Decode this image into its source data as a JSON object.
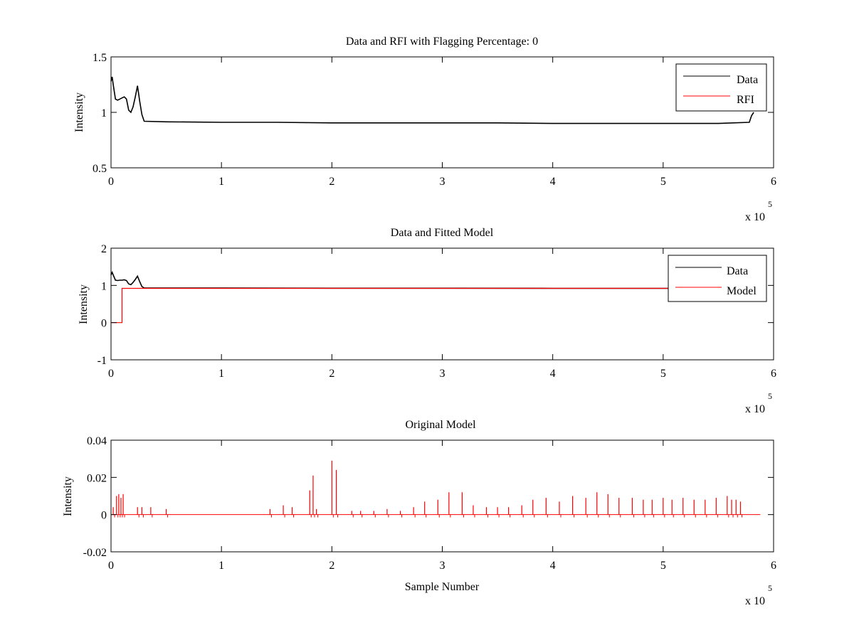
{
  "chart_data": [
    {
      "type": "line",
      "title": "Data and RFI with Flagging Percentage: 0",
      "xlabel": "",
      "ylabel": "Intensity",
      "xlim": [
        0,
        6
      ],
      "ylim": [
        0.5,
        1.5
      ],
      "x_multiplier": "x 10",
      "x_multiplier_exp": "5",
      "xticks": [
        "0",
        "1",
        "2",
        "3",
        "4",
        "5",
        "6"
      ],
      "yticks": [
        "0.5",
        "1",
        "1.5"
      ],
      "ytick_values": [
        0.5,
        1,
        1.5
      ],
      "legend_position": "top-right",
      "series": [
        {
          "name": "Data",
          "color": "#000000",
          "x": [
            0,
            0.01,
            0.02,
            0.04,
            0.06,
            0.08,
            0.1,
            0.12,
            0.14,
            0.16,
            0.18,
            0.2,
            0.22,
            0.24,
            0.26,
            0.28,
            0.3,
            0.5,
            1.0,
            1.5,
            2.0,
            2.5,
            3.0,
            3.5,
            4.0,
            4.5,
            5.0,
            5.5,
            5.78,
            5.8,
            5.82
          ],
          "y": [
            1.28,
            1.32,
            1.25,
            1.12,
            1.11,
            1.12,
            1.13,
            1.14,
            1.12,
            1.02,
            1.0,
            1.05,
            1.14,
            1.24,
            1.1,
            0.98,
            0.92,
            0.915,
            0.91,
            0.91,
            0.905,
            0.905,
            0.905,
            0.905,
            0.9,
            0.9,
            0.9,
            0.9,
            0.91,
            0.97,
            1.0
          ]
        },
        {
          "name": "RFI",
          "color": "#ff0000",
          "x": [],
          "y": []
        }
      ]
    },
    {
      "type": "line",
      "title": "Data and Fitted Model",
      "xlabel": "",
      "ylabel": "Intensity",
      "xlim": [
        0,
        6
      ],
      "ylim": [
        -1,
        2
      ],
      "x_multiplier": "x 10",
      "x_multiplier_exp": "5",
      "xticks": [
        "0",
        "1",
        "2",
        "3",
        "4",
        "5",
        "6"
      ],
      "yticks": [
        "-1",
        "0",
        "1",
        "2"
      ],
      "ytick_values": [
        -1,
        0,
        1,
        2
      ],
      "legend_position": "top-right",
      "series": [
        {
          "name": "Data",
          "color": "#000000",
          "x": [
            0,
            0.01,
            0.02,
            0.04,
            0.06,
            0.08,
            0.1,
            0.12,
            0.14,
            0.16,
            0.18,
            0.2,
            0.22,
            0.24,
            0.26,
            0.28,
            0.3,
            0.5,
            1.0,
            2.0,
            3.0,
            4.0,
            5.0,
            5.8,
            5.82
          ],
          "y": [
            1.28,
            1.35,
            1.28,
            1.14,
            1.13,
            1.14,
            1.14,
            1.15,
            1.13,
            1.04,
            1.02,
            1.08,
            1.16,
            1.25,
            1.1,
            0.97,
            0.93,
            0.93,
            0.93,
            0.925,
            0.925,
            0.92,
            0.92,
            0.92,
            0.92
          ]
        },
        {
          "name": "Model",
          "color": "#ff0000",
          "x": [
            0,
            0.1,
            0.1,
            0.5,
            1.0,
            2.0,
            3.0,
            4.0,
            5.0,
            5.82
          ],
          "y": [
            0.0,
            0.0,
            0.92,
            0.92,
            0.92,
            0.92,
            0.92,
            0.92,
            0.92,
            0.92
          ]
        }
      ]
    },
    {
      "type": "line",
      "title": "Original Model",
      "xlabel": "Sample Number",
      "ylabel": "Intensity",
      "xlim": [
        0,
        6
      ],
      "ylim": [
        -0.02,
        0.04
      ],
      "x_multiplier": "x 10",
      "x_multiplier_exp": "5",
      "xticks": [
        "0",
        "1",
        "2",
        "3",
        "4",
        "5",
        "6"
      ],
      "yticks": [
        "-0.02",
        "0",
        "0.02",
        "0.04"
      ],
      "ytick_values": [
        -0.02,
        0,
        0.02,
        0.04
      ],
      "series": [
        {
          "name": "",
          "color": "#ff0000",
          "baseline": 0,
          "x_range": [
            0,
            5.88
          ],
          "spikes": [
            {
              "x": 0.02,
              "y": 0.004
            },
            {
              "x": 0.05,
              "y": 0.01
            },
            {
              "x": 0.07,
              "y": 0.011
            },
            {
              "x": 0.09,
              "y": 0.009
            },
            {
              "x": 0.11,
              "y": 0.011
            },
            {
              "x": 0.24,
              "y": 0.004
            },
            {
              "x": 0.28,
              "y": 0.004
            },
            {
              "x": 0.36,
              "y": 0.004
            },
            {
              "x": 0.5,
              "y": 0.003
            },
            {
              "x": 1.44,
              "y": 0.003
            },
            {
              "x": 1.56,
              "y": 0.005
            },
            {
              "x": 1.64,
              "y": 0.004
            },
            {
              "x": 1.8,
              "y": 0.013
            },
            {
              "x": 1.83,
              "y": 0.021
            },
            {
              "x": 1.86,
              "y": 0.003
            },
            {
              "x": 2.0,
              "y": 0.029
            },
            {
              "x": 2.04,
              "y": 0.024
            },
            {
              "x": 2.18,
              "y": 0.002
            },
            {
              "x": 2.26,
              "y": 0.002
            },
            {
              "x": 2.38,
              "y": 0.002
            },
            {
              "x": 2.5,
              "y": 0.003
            },
            {
              "x": 2.62,
              "y": 0.002
            },
            {
              "x": 2.74,
              "y": 0.004
            },
            {
              "x": 2.84,
              "y": 0.007
            },
            {
              "x": 2.96,
              "y": 0.008
            },
            {
              "x": 3.06,
              "y": 0.012
            },
            {
              "x": 3.18,
              "y": 0.012
            },
            {
              "x": 3.28,
              "y": 0.005
            },
            {
              "x": 3.4,
              "y": 0.004
            },
            {
              "x": 3.5,
              "y": 0.004
            },
            {
              "x": 3.6,
              "y": 0.004
            },
            {
              "x": 3.72,
              "y": 0.005
            },
            {
              "x": 3.82,
              "y": 0.008
            },
            {
              "x": 3.94,
              "y": 0.009
            },
            {
              "x": 4.06,
              "y": 0.007
            },
            {
              "x": 4.18,
              "y": 0.01
            },
            {
              "x": 4.3,
              "y": 0.009
            },
            {
              "x": 4.4,
              "y": 0.012
            },
            {
              "x": 4.5,
              "y": 0.011
            },
            {
              "x": 4.6,
              "y": 0.009
            },
            {
              "x": 4.72,
              "y": 0.009
            },
            {
              "x": 4.82,
              "y": 0.008
            },
            {
              "x": 4.9,
              "y": 0.008
            },
            {
              "x": 5.0,
              "y": 0.009
            },
            {
              "x": 5.08,
              "y": 0.008
            },
            {
              "x": 5.18,
              "y": 0.009
            },
            {
              "x": 5.28,
              "y": 0.008
            },
            {
              "x": 5.38,
              "y": 0.008
            },
            {
              "x": 5.48,
              "y": 0.009
            },
            {
              "x": 5.58,
              "y": 0.01
            },
            {
              "x": 5.62,
              "y": 0.008
            },
            {
              "x": 5.66,
              "y": 0.008
            },
            {
              "x": 5.7,
              "y": 0.007
            }
          ]
        }
      ]
    }
  ]
}
